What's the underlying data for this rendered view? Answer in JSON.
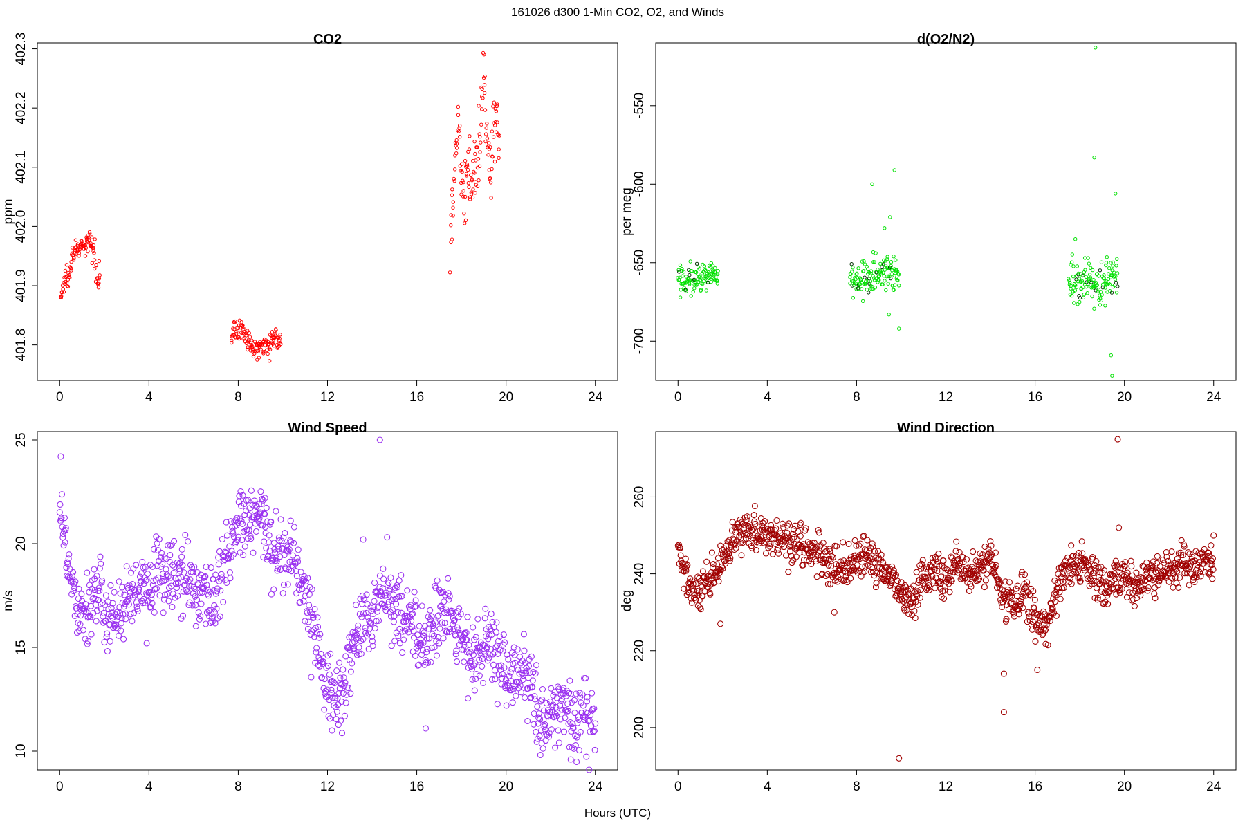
{
  "figure": {
    "title": "161026   d300   1-Min CO2, O2, and Winds",
    "xlabel": "Hours (UTC)"
  },
  "chart_data": [
    {
      "type": "scatter",
      "title": "CO2",
      "ylabel": "ppm",
      "xlim": [
        -1,
        25
      ],
      "ylim": [
        401.74,
        402.31
      ],
      "xticks": [
        0,
        4,
        8,
        12,
        16,
        20,
        24
      ],
      "yticks": [
        401.8,
        401.9,
        402.0,
        402.1,
        402.2,
        402.3
      ],
      "xticklabels": [
        "0",
        "4",
        "8",
        "12",
        "16",
        "20",
        "24"
      ],
      "yticklabels": [
        "401.8",
        "401.9",
        "402.0",
        "402.1",
        "402.2",
        "402.3"
      ],
      "color": "#ff0000",
      "marker_radius": 2.2,
      "segments": [
        {
          "x": [
            0.05,
            0.25,
            0.45,
            0.6,
            0.75,
            0.9,
            1.05,
            1.2,
            1.35,
            1.5,
            1.62,
            1.72,
            1.8
          ],
          "y": [
            401.88,
            401.91,
            401.93,
            401.955,
            401.962,
            401.96,
            401.965,
            401.968,
            401.975,
            401.96,
            401.94,
            401.915,
            401.92
          ],
          "jitter": 0.012,
          "n": 110
        },
        {
          "x": [
            7.7,
            7.9,
            8.1,
            8.3,
            8.5,
            8.7,
            8.9,
            9.1,
            9.3,
            9.5,
            9.7,
            9.9
          ],
          "y": [
            401.82,
            401.825,
            401.828,
            401.82,
            401.8,
            401.79,
            401.795,
            401.805,
            401.8,
            401.805,
            401.815,
            401.795
          ],
          "jitter": 0.011,
          "n": 135
        },
        {
          "x": [
            17.5,
            17.65,
            17.8,
            17.95,
            18.1,
            18.3,
            18.5,
            18.7,
            18.85,
            19.0,
            19.15,
            19.3,
            19.45,
            19.6,
            19.7
          ],
          "y": [
            401.98,
            402.08,
            402.17,
            402.12,
            402.05,
            402.1,
            402.08,
            402.09,
            402.15,
            402.26,
            402.14,
            402.07,
            402.19,
            402.18,
            402.17
          ],
          "jitter": 0.035,
          "n": 135
        }
      ]
    },
    {
      "type": "scatter",
      "title": "d(O2/N2)",
      "ylabel": "per meg",
      "xlim": [
        -1,
        25
      ],
      "ylim": [
        -725,
        -510
      ],
      "xticks": [
        0,
        4,
        8,
        12,
        16,
        20,
        24
      ],
      "yticks": [
        -700,
        -650,
        -600,
        -550
      ],
      "xticklabels": [
        "0",
        "4",
        "8",
        "12",
        "16",
        "20",
        "24"
      ],
      "yticklabels": [
        "-700",
        "-650",
        "-600",
        "-550"
      ],
      "color": "#00e000",
      "dark_color": "#003000",
      "marker_radius": 2.2,
      "segments": [
        {
          "x": [
            0.0,
            0.4,
            0.8,
            1.2,
            1.8
          ],
          "y": [
            -659,
            -660,
            -660,
            -658,
            -658
          ],
          "jitter": 5.5,
          "n": 110
        },
        {
          "x": [
            7.7,
            8.3,
            8.9,
            9.4,
            9.9
          ],
          "y": [
            -662,
            -660,
            -658,
            -656,
            -657
          ],
          "jitter": 8,
          "n": 135
        },
        {
          "x": [
            17.5,
            18.2,
            18.7,
            19.2,
            19.7
          ],
          "y": [
            -661,
            -660,
            -662,
            -660,
            -659
          ],
          "jitter": 9,
          "n": 135
        }
      ],
      "outliers": [
        {
          "x": 8.7,
          "y": -600
        },
        {
          "x": 9.7,
          "y": -591
        },
        {
          "x": 9.5,
          "y": -621
        },
        {
          "x": 9.25,
          "y": -628
        },
        {
          "x": 9.9,
          "y": -692
        },
        {
          "x": 9.45,
          "y": -683
        },
        {
          "x": 18.7,
          "y": -513
        },
        {
          "x": 18.65,
          "y": -583
        },
        {
          "x": 19.6,
          "y": -606
        },
        {
          "x": 19.4,
          "y": -709
        },
        {
          "x": 19.45,
          "y": -722
        },
        {
          "x": 17.8,
          "y": -635
        }
      ]
    },
    {
      "type": "scatter",
      "title": "Wind Speed",
      "ylabel": "m/s",
      "xlim": [
        -1,
        25
      ],
      "ylim": [
        9.1,
        25.4
      ],
      "xticks": [
        0,
        4,
        8,
        12,
        16,
        20,
        24
      ],
      "yticks": [
        10,
        15,
        20,
        25
      ],
      "xticklabels": [
        "0",
        "4",
        "8",
        "12",
        "16",
        "20",
        "24"
      ],
      "yticklabels": [
        "10",
        "15",
        "20",
        "25"
      ],
      "color": "#9a30f0",
      "marker_radius": 4,
      "series_x_start": 0.0,
      "series_x_end": 24.0,
      "n": 1200,
      "jitter": 1.15,
      "trend_x": [
        0.0,
        0.15,
        0.5,
        0.8,
        1.2,
        1.6,
        2.0,
        2.5,
        3.0,
        3.5,
        4.0,
        4.5,
        5.0,
        5.5,
        6.0,
        6.5,
        7.0,
        7.5,
        8.0,
        8.5,
        9.0,
        9.5,
        10.0,
        10.5,
        11.0,
        11.5,
        12.0,
        12.5,
        13.0,
        13.5,
        14.0,
        14.5,
        15.0,
        15.5,
        16.0,
        16.5,
        17.0,
        17.5,
        18.0,
        18.5,
        19.0,
        19.5,
        20.0,
        20.5,
        21.0,
        21.5,
        22.0,
        22.5,
        23.0,
        23.5,
        24.0
      ],
      "trend_y": [
        22.5,
        20.5,
        18.5,
        17.2,
        16.8,
        17.6,
        16.8,
        16.5,
        17.0,
        17.5,
        17.8,
        18.8,
        18.5,
        18.2,
        18.0,
        17.6,
        17.2,
        19.5,
        20.8,
        21.0,
        21.2,
        19.8,
        19.6,
        19.3,
        17.5,
        15.5,
        13.2,
        12.2,
        14.5,
        16.0,
        16.2,
        17.8,
        17.0,
        16.5,
        15.6,
        15.2,
        16.8,
        16.5,
        15.2,
        14.5,
        14.8,
        15.2,
        13.2,
        13.6,
        13.8,
        11.2,
        11.5,
        12.6,
        11.2,
        12.0,
        10.9
      ],
      "outliers": [
        {
          "x": 14.35,
          "y": 25.0
        },
        {
          "x": 0.05,
          "y": 24.2
        },
        {
          "x": 3.9,
          "y": 15.2
        },
        {
          "x": 12.2,
          "y": 11.0
        },
        {
          "x": 16.4,
          "y": 11.1
        },
        {
          "x": 22.9,
          "y": 9.6
        },
        {
          "x": 13.6,
          "y": 20.2
        },
        {
          "x": 9.2,
          "y": 22.2
        }
      ]
    },
    {
      "type": "scatter",
      "title": "Wind Direction",
      "ylabel": "deg",
      "xlim": [
        -1,
        25
      ],
      "ylim": [
        189,
        277
      ],
      "xticks": [
        0,
        4,
        8,
        12,
        16,
        20,
        24
      ],
      "yticks": [
        200,
        220,
        240,
        260
      ],
      "xticklabels": [
        "0",
        "4",
        "8",
        "12",
        "16",
        "20",
        "24"
      ],
      "yticklabels": [
        "200",
        "220",
        "240",
        "260"
      ],
      "color": "#a00000",
      "marker_radius": 4,
      "series_x_start": 0.0,
      "series_x_end": 24.0,
      "n": 1200,
      "jitter": 3.4,
      "trend_x": [
        0.0,
        0.3,
        0.8,
        1.2,
        1.6,
        2.0,
        2.5,
        3.0,
        4.0,
        5.0,
        6.0,
        7.0,
        8.0,
        8.5,
        9.0,
        9.5,
        10.0,
        10.5,
        11.0,
        11.5,
        12.0,
        12.5,
        13.0,
        13.5,
        14.0,
        14.5,
        15.0,
        15.5,
        16.0,
        16.5,
        17.0,
        17.5,
        18.0,
        18.5,
        19.0,
        19.5,
        20.0,
        20.5,
        21.0,
        21.5,
        22.0,
        22.5,
        23.0,
        23.5,
        24.0
      ],
      "trend_y": [
        246,
        240,
        234,
        236,
        239,
        243,
        248,
        252,
        250,
        249,
        246,
        241,
        243,
        244,
        242,
        240,
        235,
        232,
        240,
        241,
        238,
        243,
        239,
        241,
        245,
        234,
        232,
        236,
        228,
        226,
        237,
        241,
        243,
        240,
        236,
        237,
        240,
        237,
        238,
        240,
        241,
        242,
        241,
        243,
        244
      ],
      "outliers": [
        {
          "x": 19.7,
          "y": 275
        },
        {
          "x": 9.9,
          "y": 192
        },
        {
          "x": 14.6,
          "y": 204
        },
        {
          "x": 16.1,
          "y": 215
        },
        {
          "x": 1.9,
          "y": 227
        },
        {
          "x": 7.0,
          "y": 230
        },
        {
          "x": 14.6,
          "y": 214
        },
        {
          "x": 19.75,
          "y": 252
        }
      ]
    }
  ]
}
